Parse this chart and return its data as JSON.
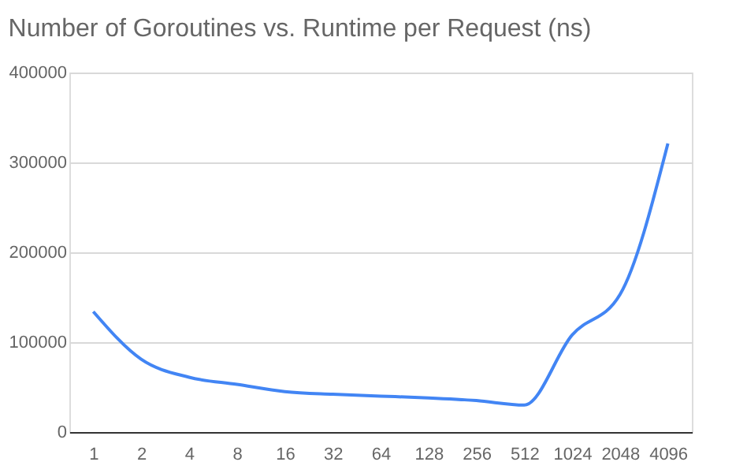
{
  "chart_data": {
    "type": "line",
    "title": "Number of Goroutines vs. Runtime per Request (ns)",
    "categories": [
      "1",
      "2",
      "4",
      "8",
      "16",
      "32",
      "64",
      "128",
      "256",
      "512",
      "1024",
      "2048",
      "4096"
    ],
    "series": [
      {
        "color": "#4285f4",
        "values": [
          134000,
          81000,
          61000,
          53000,
          45000,
          42000,
          40000,
          38000,
          35000,
          30000,
          108000,
          153000,
          321000
        ]
      }
    ],
    "ylim": [
      0,
      400000
    ],
    "yticks": [
      0,
      100000,
      200000,
      300000,
      400000
    ],
    "grid": "y",
    "legend": false,
    "marker": "none",
    "line_style": "solid"
  }
}
